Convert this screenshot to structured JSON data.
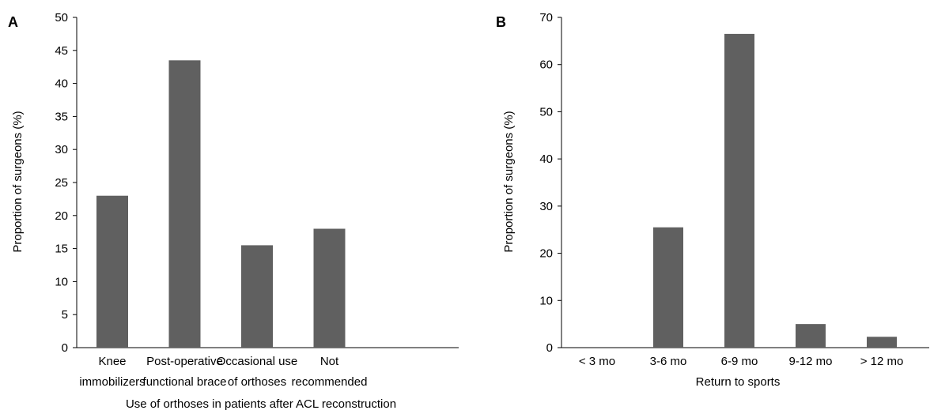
{
  "chart_data": [
    {
      "type": "bar",
      "panel": "A",
      "categories": [
        [
          "Knee",
          "immobilizers"
        ],
        [
          "Post-operative",
          "functional brace"
        ],
        [
          "Occasional use",
          "of orthoses"
        ],
        [
          "Not",
          "recommended"
        ]
      ],
      "values": [
        23,
        43.5,
        15.5,
        18
      ],
      "xlabel": "Use of orthoses in patients after ACL reconstruction",
      "ylabel": "Proportion of surgeons (%)",
      "ylim": [
        0,
        50
      ],
      "yticks": [
        0,
        5,
        10,
        15,
        20,
        25,
        30,
        35,
        40,
        45,
        50
      ],
      "bar_color": "#606060",
      "grid": false
    },
    {
      "type": "bar",
      "panel": "B",
      "categories": [
        [
          "< 3 mo"
        ],
        [
          "3-6 mo"
        ],
        [
          "6-9 mo"
        ],
        [
          "9-12 mo"
        ],
        [
          "> 12 mo"
        ]
      ],
      "values": [
        0,
        25.5,
        66.5,
        5,
        2.3
      ],
      "xlabel": "Return to sports",
      "ylabel": "Proportion of surgeons (%)",
      "ylim": [
        0,
        70
      ],
      "yticks": [
        0,
        10,
        20,
        30,
        40,
        50,
        60,
        70
      ],
      "bar_color": "#606060",
      "grid": false
    }
  ]
}
